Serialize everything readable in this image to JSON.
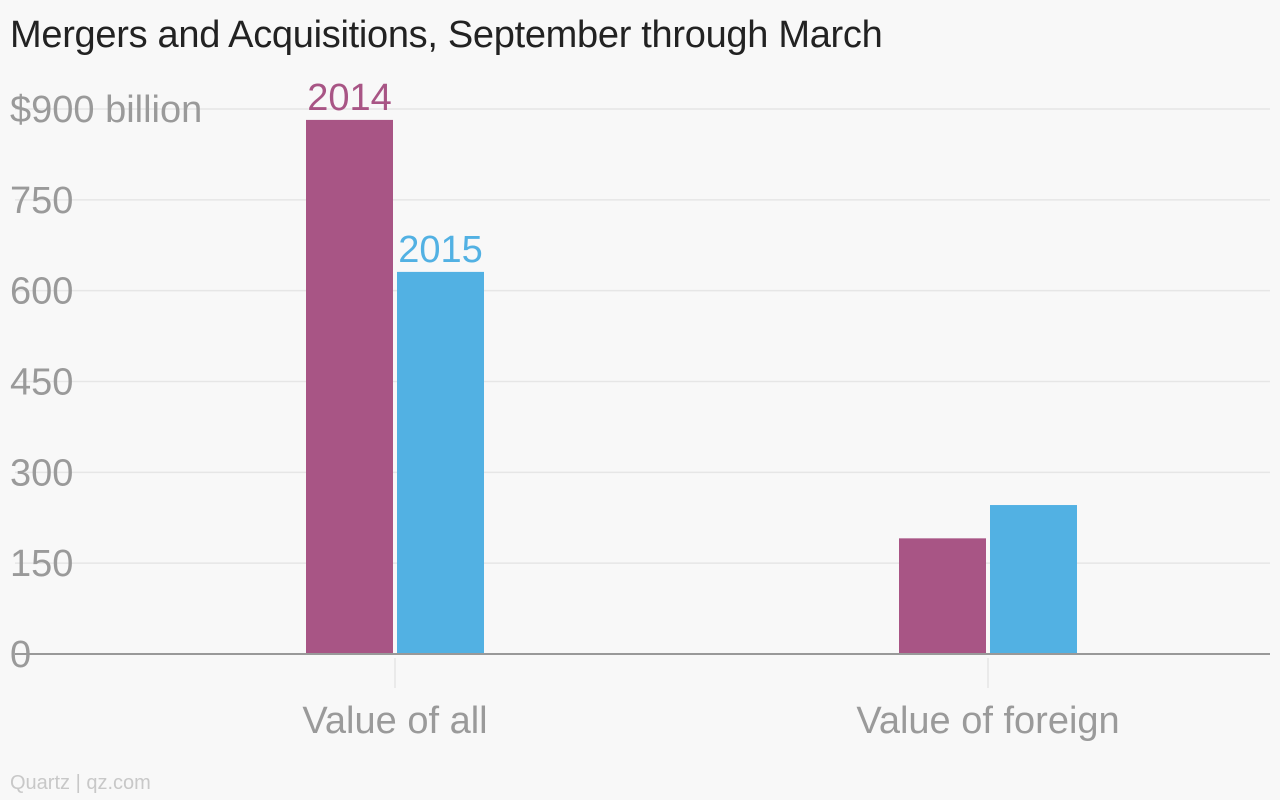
{
  "title": "Mergers and Acquisitions, September through March",
  "footer": "Quartz | qz.com",
  "colors": {
    "series_2014": "#a85585",
    "series_2015": "#52b1e3",
    "grid": "#e6e6e6",
    "axis": "#999999",
    "tick_text": "#9a9a9a"
  },
  "chart_data": {
    "type": "bar",
    "categories": [
      "Value of all",
      "Value of foreign"
    ],
    "series": [
      {
        "name": "2014",
        "values": [
          882,
          191
        ]
      },
      {
        "name": "2015",
        "values": [
          631,
          246
        ]
      }
    ],
    "yticks": [
      "$900 billion",
      "750",
      "600",
      "450",
      "300",
      "150",
      "0"
    ],
    "ytick_values": [
      900,
      750,
      600,
      450,
      300,
      150,
      0
    ],
    "ylim": [
      0,
      900
    ],
    "grid": true,
    "legend": "labels above first category bars"
  }
}
